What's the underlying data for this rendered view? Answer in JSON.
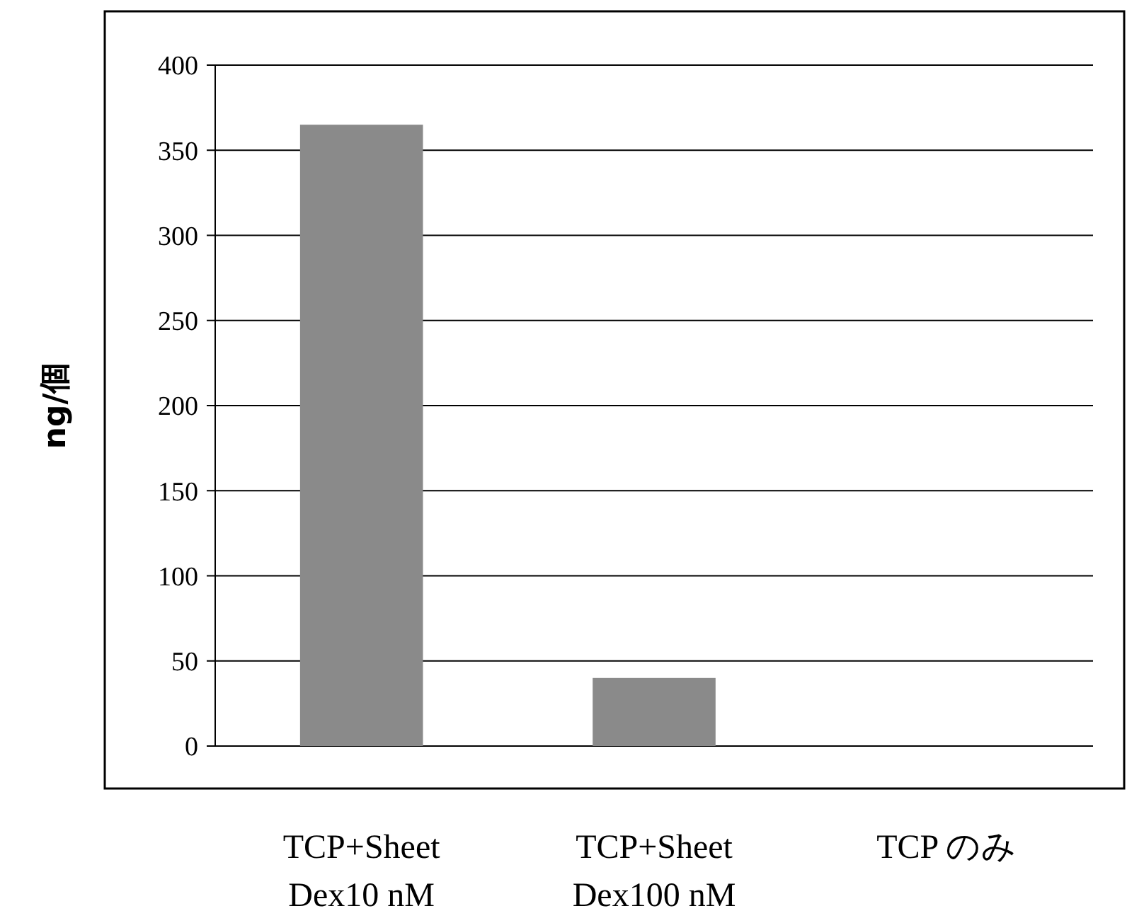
{
  "chart_data": {
    "type": "bar",
    "ylabel": "ng/個",
    "categories": [
      "TCP+Sheet\nDex10 nM",
      "TCP+Sheet\nDex100 nM",
      "TCP のみ"
    ],
    "values": [
      365,
      40,
      0
    ],
    "color": "#8a8a8a",
    "ylim": [
      0,
      400
    ],
    "yticks": [
      0,
      50,
      100,
      150,
      200,
      250,
      300,
      350,
      400
    ],
    "grid": "y"
  }
}
